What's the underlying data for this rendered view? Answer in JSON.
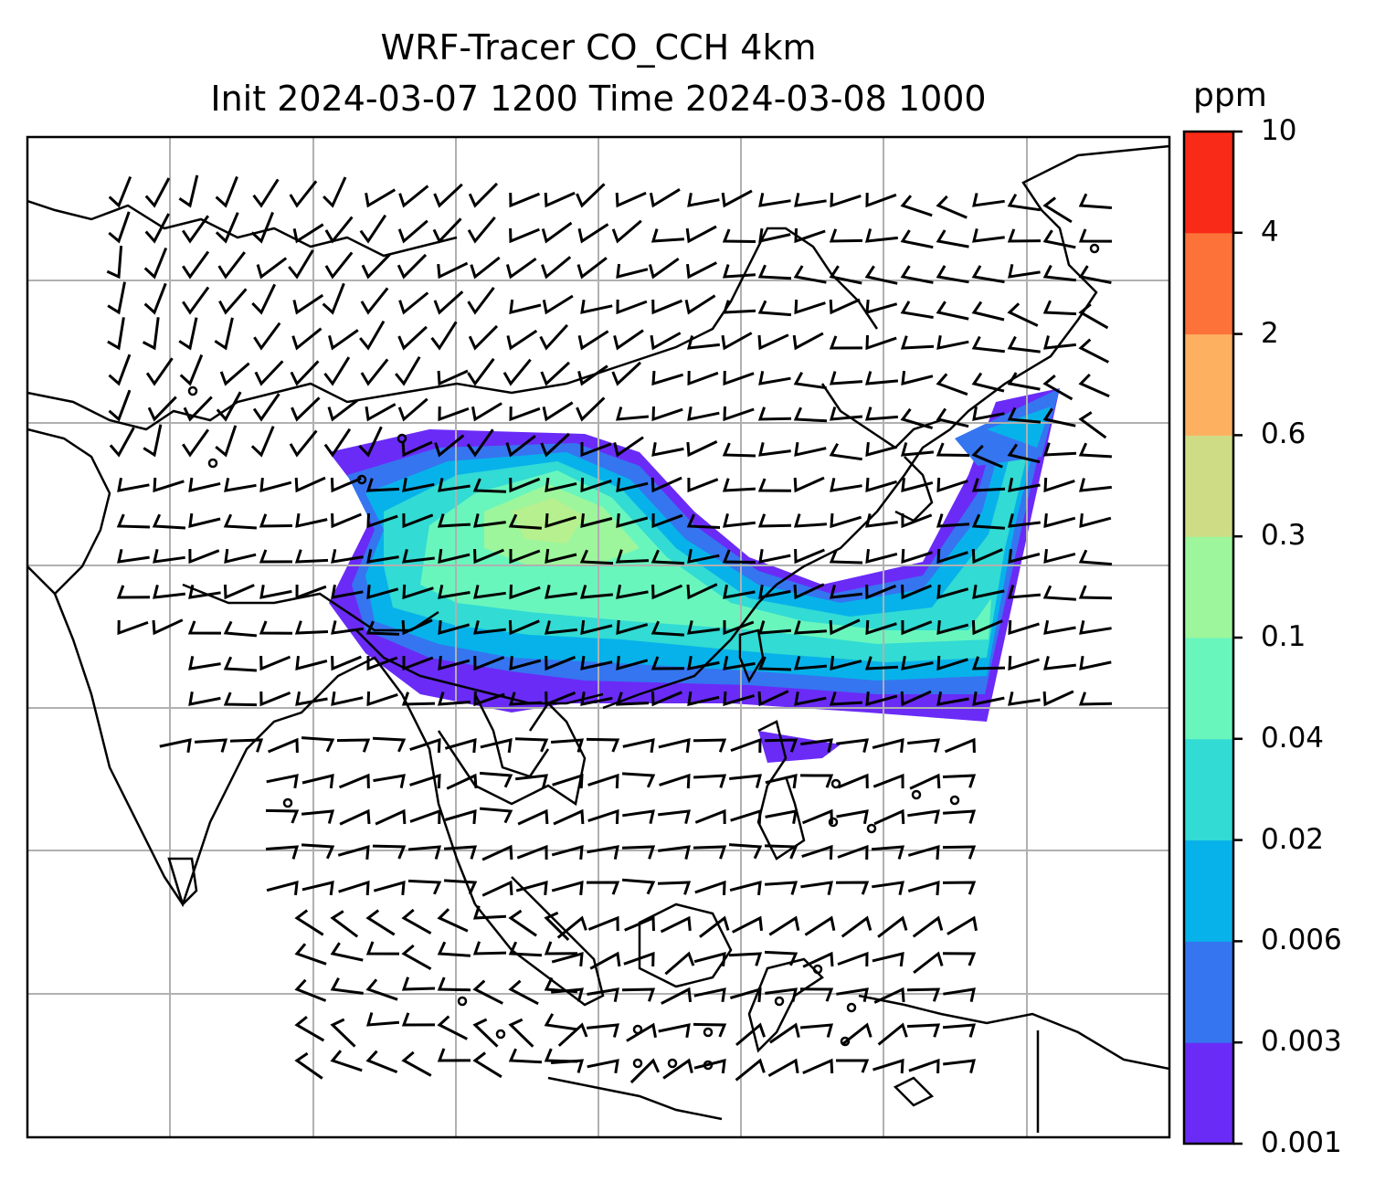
{
  "title": {
    "line1": "WRF-Tracer CO_CCH 4km",
    "line2": "Init 2024-03-07 1200 Time 2024-03-08 1000"
  },
  "colorbar": {
    "unit": "ppm",
    "levels": [
      "0.001",
      "0.003",
      "0.006",
      "0.02",
      "0.04",
      "0.1",
      "0.3",
      "0.6",
      "2",
      "4",
      "10"
    ],
    "colors": [
      "#6a2bf7",
      "#3575f0",
      "#07b2ea",
      "#32dbd3",
      "#69f6bd",
      "#9df69c",
      "#cfdc86",
      "#fdb060",
      "#fd7238",
      "#f92a18"
    ]
  },
  "map": {
    "gridlines": true,
    "features": [
      "coastlines",
      "country-borders",
      "wind-barbs",
      "tracer-plume"
    ]
  }
}
